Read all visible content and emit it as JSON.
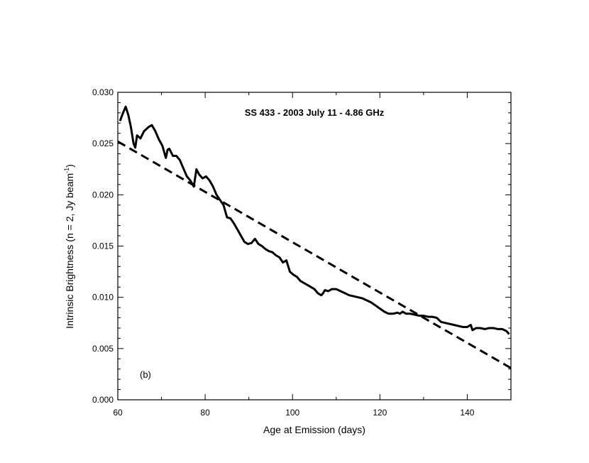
{
  "chart_data": {
    "type": "line",
    "title": "SS 433  -  2003 July 11  -  4.86 GHz",
    "xlabel": "Age at Emission (days)",
    "ylabel": "Intrinsic Brightness (n = 2, Jy beam",
    "ylabel_sup": "-1",
    "ylabel_end": ")",
    "panel_label": "(b)",
    "xlim": [
      60,
      150
    ],
    "ylim": [
      0.0,
      0.03
    ],
    "x_ticks": [
      60,
      80,
      100,
      120,
      140
    ],
    "x_tick_labels": [
      "60",
      "80",
      "100",
      "120",
      "140"
    ],
    "y_ticks": [
      0.0,
      0.005,
      0.01,
      0.015,
      0.02,
      0.025,
      0.03
    ],
    "y_tick_labels": [
      "0.000",
      "0.005",
      "0.010",
      "0.015",
      "0.020",
      "0.025",
      "0.030"
    ],
    "grid": false,
    "series": [
      {
        "style": "solid",
        "x": [
          60.5,
          61.2,
          61.8,
          62.4,
          63.0,
          63.6,
          64.0,
          64.4,
          65.2,
          66.0,
          67.0,
          67.8,
          68.6,
          69.4,
          70.2,
          71.0,
          71.4,
          71.8,
          72.6,
          73.4,
          74.2,
          75.0,
          75.8,
          76.6,
          77.4,
          78.0,
          78.6,
          79.4,
          80.2,
          81.0,
          81.8,
          82.6,
          83.4,
          84.2,
          85.0,
          85.8,
          86.6,
          87.4,
          88.2,
          89.0,
          89.8,
          90.6,
          91.4,
          92.2,
          93.0,
          93.8,
          94.6,
          95.4,
          96.2,
          97.0,
          97.8,
          98.6,
          99.4,
          100.2,
          101.0,
          101.8,
          102.6,
          103.4,
          104.2,
          105.0,
          105.8,
          106.6,
          107.0,
          107.4,
          108.2,
          109.0,
          110.0,
          111.0,
          112.0,
          113.0,
          114.0,
          115.0,
          116.0,
          117.0,
          118.0,
          119.0,
          120.0,
          121.0,
          122.0,
          123.0,
          124.0,
          124.6,
          125.2,
          126.0,
          127.0,
          128.0,
          129.0,
          130.0,
          131.0,
          132.0,
          133.0,
          134.0,
          135.0,
          136.0,
          137.0,
          138.0,
          139.0,
          140.0,
          140.8,
          141.2,
          142.0,
          143.0,
          144.0,
          145.0,
          146.0,
          147.0,
          148.0,
          149.0,
          149.6
        ],
        "y": [
          0.0272,
          0.028,
          0.0286,
          0.0278,
          0.0266,
          0.025,
          0.0246,
          0.0258,
          0.0255,
          0.0262,
          0.0266,
          0.0268,
          0.0262,
          0.0254,
          0.0248,
          0.0236,
          0.0244,
          0.0245,
          0.0238,
          0.0238,
          0.0234,
          0.0226,
          0.0218,
          0.0214,
          0.0208,
          0.0225,
          0.022,
          0.0216,
          0.0218,
          0.0214,
          0.0208,
          0.02,
          0.0195,
          0.019,
          0.0178,
          0.0177,
          0.0172,
          0.0166,
          0.016,
          0.0154,
          0.0152,
          0.0153,
          0.0157,
          0.0152,
          0.015,
          0.0147,
          0.0145,
          0.0144,
          0.0141,
          0.0139,
          0.0134,
          0.0136,
          0.0125,
          0.0122,
          0.012,
          0.0116,
          0.0114,
          0.0112,
          0.011,
          0.0108,
          0.0104,
          0.0102,
          0.0104,
          0.0107,
          0.0106,
          0.0108,
          0.0108,
          0.0106,
          0.0104,
          0.0102,
          0.0101,
          0.01,
          0.0099,
          0.0097,
          0.0095,
          0.0092,
          0.0089,
          0.0086,
          0.0084,
          0.0084,
          0.0085,
          0.0084,
          0.0086,
          0.0084,
          0.0084,
          0.0083,
          0.0082,
          0.0082,
          0.0081,
          0.0081,
          0.008,
          0.0076,
          0.0075,
          0.0074,
          0.0073,
          0.0072,
          0.0071,
          0.0071,
          0.0073,
          0.0068,
          0.007,
          0.007,
          0.0069,
          0.007,
          0.007,
          0.0069,
          0.0069,
          0.0067,
          0.0064
        ]
      },
      {
        "style": "dashed",
        "x": [
          60,
          150
        ],
        "y": [
          0.0252,
          0.0031
        ]
      }
    ]
  }
}
